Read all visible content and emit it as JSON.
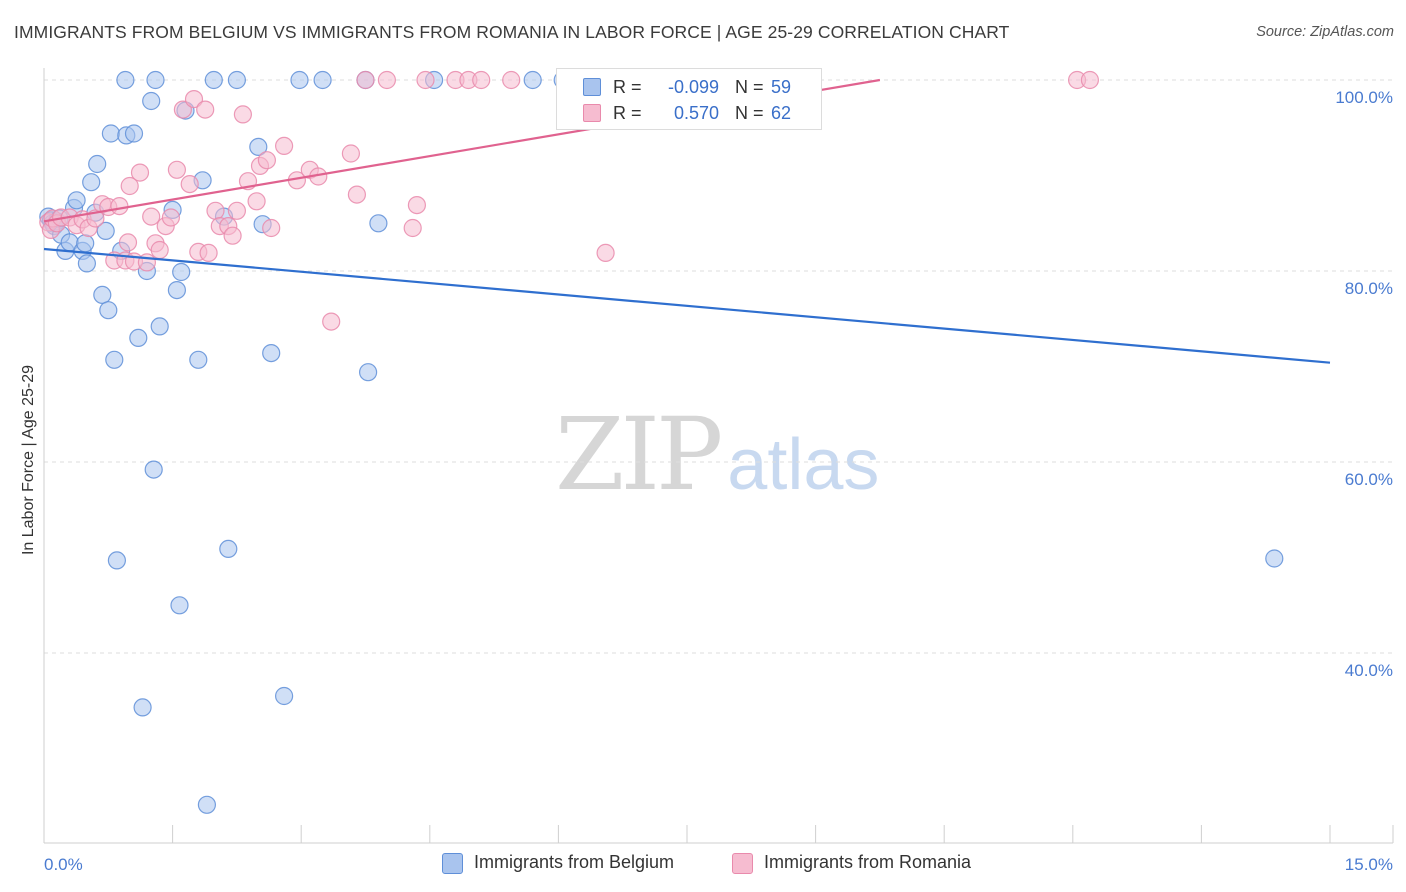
{
  "header": {
    "title": "IMMIGRANTS FROM BELGIUM VS IMMIGRANTS FROM ROMANIA IN LABOR FORCE | AGE 25-29 CORRELATION CHART",
    "source_prefix": "Source: ",
    "source_site": "ZipAtlas.com"
  },
  "watermark": {
    "zip": "ZIP",
    "atlas": "atlas"
  },
  "legend": {
    "rows": [
      {
        "r_label": "R =",
        "r_value": "-0.099",
        "n_label": "N =",
        "n_value": "59"
      },
      {
        "r_label": "R =",
        "r_value": "0.570",
        "n_label": "N =",
        "n_value": "62"
      }
    ]
  },
  "bottom_legend": {
    "belgium": "Immigrants from Belgium",
    "romania": "Immigrants from Romania"
  },
  "colors": {
    "belgium_fill": "#a9c4ee",
    "belgium_stroke": "#5f8fd8",
    "belgium_line": "#2f6fcf",
    "romania_fill": "#f6bcd0",
    "romania_stroke": "#e98aac",
    "romania_line": "#e0628f",
    "tick_text": "#4a7bd0",
    "grid": "#dedede"
  },
  "chart_data": {
    "type": "scatter",
    "title": "IMMIGRANTS FROM BELGIUM VS IMMIGRANTS FROM ROMANIA IN LABOR FORCE | AGE 25-29 CORRELATION CHART",
    "xlabel": "",
    "ylabel": "In Labor Force | Age 25-29",
    "xlim": [
      0.0,
      15.0
    ],
    "ylim": [
      22.0,
      102.0
    ],
    "x_tick_labels": [
      "0.0%",
      "15.0%"
    ],
    "y_ticks": [
      40,
      60,
      80,
      100
    ],
    "y_tick_labels": [
      "40.0%",
      "60.0%",
      "80.0%",
      "100.0%"
    ],
    "series": [
      {
        "name": "Immigrants from Belgium",
        "r": -0.099,
        "n": 59,
        "trend": {
          "x": [
            0.0,
            15.0
          ],
          "y": [
            82.3,
            70.4
          ]
        },
        "points": [
          [
            0.05,
            85.7
          ],
          [
            0.08,
            85.3
          ],
          [
            0.1,
            85.0
          ],
          [
            0.12,
            84.7
          ],
          [
            0.15,
            85.2
          ],
          [
            0.18,
            85.5
          ],
          [
            0.2,
            83.8
          ],
          [
            0.25,
            82.1
          ],
          [
            0.3,
            83.0
          ],
          [
            0.35,
            86.6
          ],
          [
            0.38,
            87.4
          ],
          [
            0.45,
            82.1
          ],
          [
            0.48,
            82.9
          ],
          [
            0.5,
            80.8
          ],
          [
            0.55,
            89.3
          ],
          [
            0.6,
            86.1
          ],
          [
            0.62,
            91.2
          ],
          [
            0.68,
            77.5
          ],
          [
            0.72,
            84.2
          ],
          [
            0.75,
            75.9
          ],
          [
            0.78,
            94.4
          ],
          [
            0.82,
            70.7
          ],
          [
            0.85,
            49.7
          ],
          [
            0.9,
            82.1
          ],
          [
            0.95,
            100.0
          ],
          [
            0.96,
            94.2
          ],
          [
            1.05,
            94.4
          ],
          [
            1.1,
            73.0
          ],
          [
            1.15,
            34.3
          ],
          [
            1.2,
            80.0
          ],
          [
            1.25,
            97.8
          ],
          [
            1.28,
            59.2
          ],
          [
            1.3,
            100.0
          ],
          [
            1.35,
            74.2
          ],
          [
            1.5,
            86.4
          ],
          [
            1.55,
            78.0
          ],
          [
            1.58,
            45.0
          ],
          [
            1.6,
            79.9
          ],
          [
            1.65,
            96.8
          ],
          [
            1.8,
            70.7
          ],
          [
            1.85,
            89.5
          ],
          [
            1.9,
            24.1
          ],
          [
            1.98,
            100.0
          ],
          [
            2.1,
            85.7
          ],
          [
            2.15,
            50.9
          ],
          [
            2.25,
            100.0
          ],
          [
            2.5,
            93.0
          ],
          [
            2.55,
            84.9
          ],
          [
            2.65,
            71.4
          ],
          [
            2.8,
            35.5
          ],
          [
            2.98,
            100.0
          ],
          [
            3.25,
            100.0
          ],
          [
            3.75,
            100.0
          ],
          [
            3.78,
            69.4
          ],
          [
            3.9,
            85.0
          ],
          [
            4.55,
            100.0
          ],
          [
            5.7,
            100.0
          ],
          [
            6.05,
            100.0
          ],
          [
            14.35,
            49.9
          ]
        ]
      },
      {
        "name": "Immigrants from Romania",
        "r": 0.57,
        "n": 62,
        "trend": {
          "x": [
            0.0,
            9.75
          ],
          "y": [
            85.2,
            100.0
          ]
        },
        "points": [
          [
            0.05,
            85.1
          ],
          [
            0.08,
            84.3
          ],
          [
            0.1,
            85.5
          ],
          [
            0.15,
            85.0
          ],
          [
            0.2,
            85.6
          ],
          [
            0.3,
            85.6
          ],
          [
            0.38,
            84.8
          ],
          [
            0.45,
            85.4
          ],
          [
            0.52,
            84.5
          ],
          [
            0.6,
            85.5
          ],
          [
            0.68,
            87.0
          ],
          [
            0.75,
            86.7
          ],
          [
            0.82,
            81.1
          ],
          [
            0.88,
            86.8
          ],
          [
            0.95,
            81.1
          ],
          [
            0.98,
            83.0
          ],
          [
            1.0,
            88.9
          ],
          [
            1.05,
            81.0
          ],
          [
            1.12,
            90.3
          ],
          [
            1.2,
            80.9
          ],
          [
            1.25,
            85.7
          ],
          [
            1.3,
            82.9
          ],
          [
            1.35,
            82.2
          ],
          [
            1.42,
            84.7
          ],
          [
            1.48,
            85.6
          ],
          [
            1.55,
            90.6
          ],
          [
            1.62,
            96.9
          ],
          [
            1.7,
            89.1
          ],
          [
            1.75,
            98.0
          ],
          [
            1.8,
            82.0
          ],
          [
            1.88,
            96.9
          ],
          [
            1.92,
            81.9
          ],
          [
            2.0,
            86.3
          ],
          [
            2.05,
            84.7
          ],
          [
            2.15,
            84.7
          ],
          [
            2.2,
            83.7
          ],
          [
            2.25,
            86.3
          ],
          [
            2.32,
            96.4
          ],
          [
            2.38,
            89.4
          ],
          [
            2.48,
            87.3
          ],
          [
            2.52,
            91.0
          ],
          [
            2.6,
            91.6
          ],
          [
            2.65,
            84.5
          ],
          [
            2.8,
            93.1
          ],
          [
            2.95,
            89.5
          ],
          [
            3.1,
            90.6
          ],
          [
            3.2,
            89.9
          ],
          [
            3.35,
            74.7
          ],
          [
            3.58,
            92.3
          ],
          [
            3.65,
            88.0
          ],
          [
            3.75,
            100.0
          ],
          [
            4.0,
            100.0
          ],
          [
            4.3,
            84.5
          ],
          [
            4.35,
            86.9
          ],
          [
            4.45,
            100.0
          ],
          [
            4.8,
            100.0
          ],
          [
            4.95,
            100.0
          ],
          [
            5.1,
            100.0
          ],
          [
            5.45,
            100.0
          ],
          [
            6.55,
            81.9
          ],
          [
            12.05,
            100.0
          ],
          [
            12.2,
            100.0
          ]
        ]
      }
    ]
  }
}
